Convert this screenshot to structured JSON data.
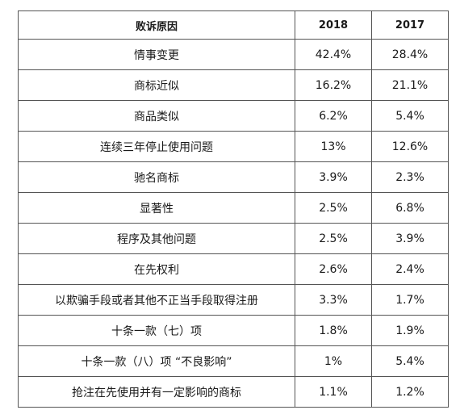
{
  "table": {
    "headers": [
      "败诉原因",
      "2018",
      "2017"
    ],
    "rows": [
      [
        "情事变更",
        "42.4%",
        "28.4%"
      ],
      [
        "商标近似",
        "16.2%",
        "21.1%"
      ],
      [
        "商品类似",
        "6.2%",
        "5.4%"
      ],
      [
        "连续三年停止使用问题",
        "13%",
        "12.6%"
      ],
      [
        "驰名商标",
        "3.9%",
        "2.3%"
      ],
      [
        "显著性",
        "2.5%",
        "6.8%"
      ],
      [
        "程序及其他问题",
        "2.5%",
        "3.9%"
      ],
      [
        "在先权利",
        "2.6%",
        "2.4%"
      ],
      [
        "以欺骗手段或者其他不正当手段取得注册",
        "3.3%",
        "1.7%"
      ],
      [
        "十条一款（七）项",
        "1.8%",
        "1.9%"
      ],
      [
        "十条一款（八）项 “不良影响”",
        "1%",
        "5.4%"
      ],
      [
        "抢注在先使用并有一定影响的商标",
        "1.1%",
        "1.2%"
      ]
    ]
  }
}
